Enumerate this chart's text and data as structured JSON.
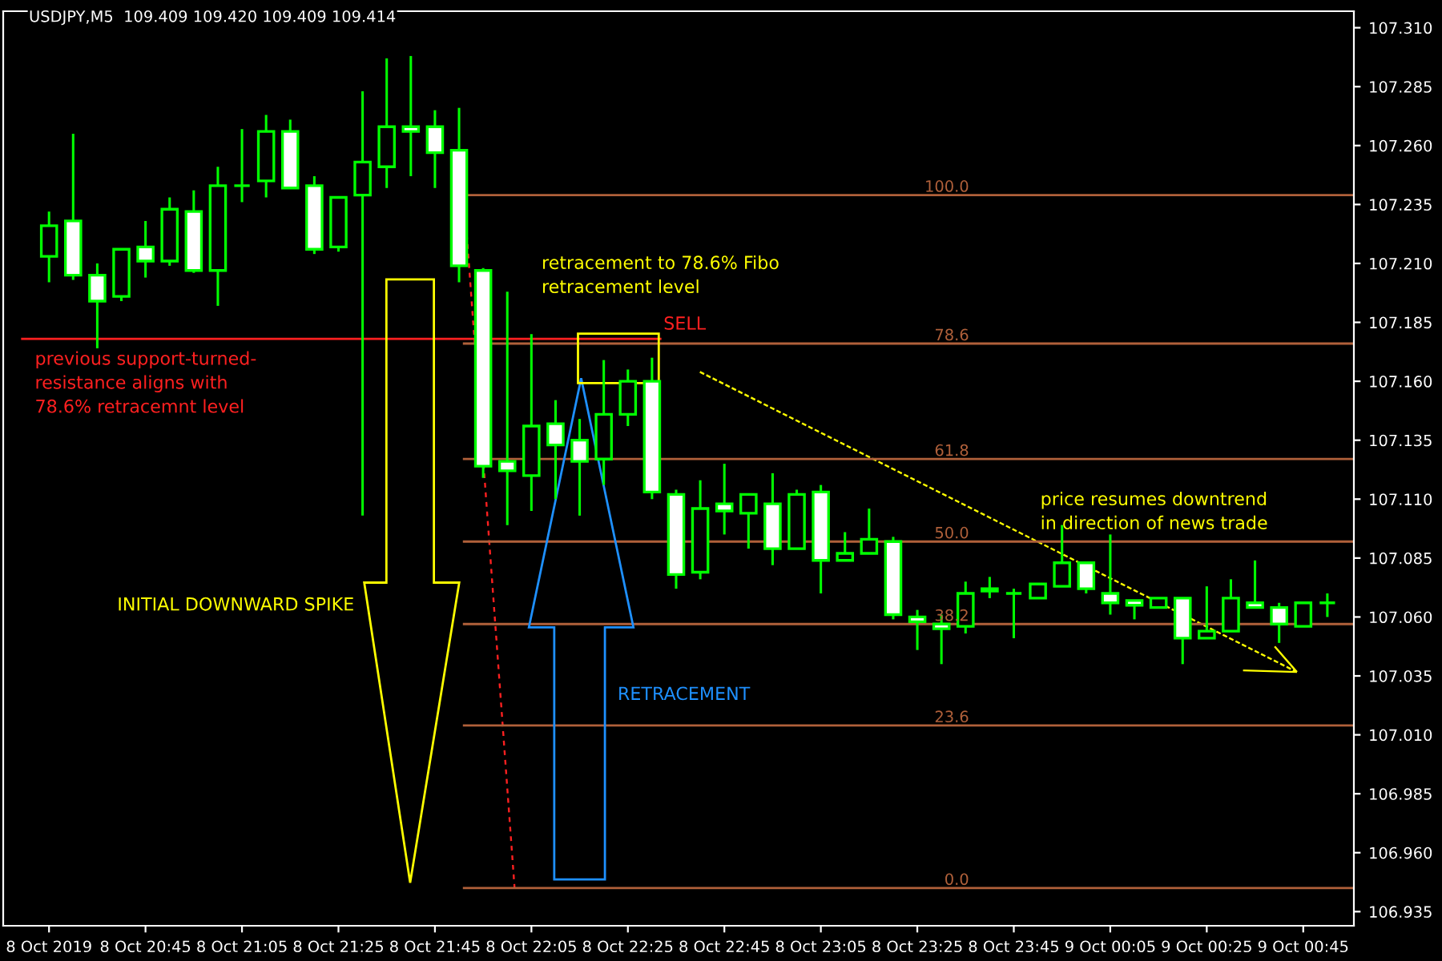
{
  "chart_data": {
    "type": "candlestick",
    "title": "USDJPY,M5  109.409 109.420 109.409 109.414",
    "categories": [
      "8 Oct 2019",
      null,
      null,
      null,
      "8 Oct 20:45",
      null,
      null,
      null,
      "8 Oct 21:05",
      null,
      null,
      null,
      "8 Oct 21:25",
      null,
      null,
      null,
      "8 Oct 21:45",
      null,
      null,
      null,
      "8 Oct 22:05",
      null,
      null,
      null,
      "8 Oct 22:25",
      null,
      null,
      null,
      "8 Oct 22:45",
      null,
      null,
      null,
      "8 Oct 23:05",
      null,
      null,
      null,
      "8 Oct 23:25",
      null,
      null,
      null,
      "8 Oct 23:45",
      null,
      null,
      null,
      "9 Oct 00:05",
      null,
      null,
      null,
      "9 Oct 00:25",
      null,
      null,
      null,
      "9 Oct 00:45",
      null
    ],
    "ohlc": [
      [
        107.213,
        107.232,
        107.202,
        107.226
      ],
      [
        107.228,
        107.265,
        107.203,
        107.205
      ],
      [
        107.205,
        107.21,
        107.174,
        107.194
      ],
      [
        107.196,
        107.216,
        107.194,
        107.216
      ],
      [
        107.217,
        107.228,
        107.204,
        107.211
      ],
      [
        107.211,
        107.238,
        107.209,
        107.233
      ],
      [
        107.232,
        107.241,
        107.206,
        107.207
      ],
      [
        107.207,
        107.251,
        107.192,
        107.243
      ],
      [
        107.243,
        107.267,
        107.236,
        107.243
      ],
      [
        107.245,
        107.273,
        107.238,
        107.266
      ],
      [
        107.266,
        107.271,
        107.242,
        107.242
      ],
      [
        107.243,
        107.247,
        107.214,
        107.216
      ],
      [
        107.217,
        107.238,
        107.215,
        107.238
      ],
      [
        107.239,
        107.283,
        107.103,
        107.253
      ],
      [
        107.251,
        107.297,
        107.242,
        107.268
      ],
      [
        107.268,
        107.298,
        107.247,
        107.266
      ],
      [
        107.268,
        107.275,
        107.242,
        107.257
      ],
      [
        107.258,
        107.276,
        107.202,
        107.209
      ],
      [
        107.207,
        107.208,
        107.119,
        107.124
      ],
      [
        107.126,
        107.198,
        107.099,
        107.122
      ],
      [
        107.12,
        107.18,
        107.105,
        107.141
      ],
      [
        107.142,
        107.152,
        107.11,
        107.133
      ],
      [
        107.135,
        107.144,
        107.103,
        107.126
      ],
      [
        107.127,
        107.169,
        107.116,
        107.146
      ],
      [
        107.146,
        107.165,
        107.141,
        107.16
      ],
      [
        107.16,
        107.17,
        107.11,
        107.113
      ],
      [
        107.112,
        107.114,
        107.072,
        107.078
      ],
      [
        107.079,
        107.118,
        107.076,
        107.106
      ],
      [
        107.108,
        107.125,
        107.095,
        107.105
      ],
      [
        107.104,
        107.112,
        107.089,
        107.112
      ],
      [
        107.108,
        107.121,
        107.082,
        107.089
      ],
      [
        107.089,
        107.114,
        107.089,
        107.112
      ],
      [
        107.113,
        107.116,
        107.07,
        107.084
      ],
      [
        107.084,
        107.096,
        107.084,
        107.087
      ],
      [
        107.087,
        107.106,
        107.087,
        107.093
      ],
      [
        107.092,
        107.094,
        107.059,
        107.061
      ],
      [
        107.06,
        107.063,
        107.046,
        107.058
      ],
      [
        107.057,
        107.061,
        107.04,
        107.055
      ],
      [
        107.056,
        107.075,
        107.053,
        107.07
      ],
      [
        107.072,
        107.077,
        107.068,
        107.071
      ],
      [
        107.07,
        107.072,
        107.051,
        107.07
      ],
      [
        107.068,
        107.074,
        107.068,
        107.074
      ],
      [
        107.073,
        107.099,
        107.073,
        107.083
      ],
      [
        107.083,
        107.083,
        107.07,
        107.072
      ],
      [
        107.07,
        107.095,
        107.061,
        107.066
      ],
      [
        107.067,
        107.067,
        107.059,
        107.065
      ],
      [
        107.064,
        107.068,
        107.064,
        107.068
      ],
      [
        107.068,
        107.068,
        107.04,
        107.051
      ],
      [
        107.051,
        107.073,
        107.051,
        107.054
      ],
      [
        107.054,
        107.076,
        107.054,
        107.068
      ],
      [
        107.066,
        107.084,
        107.064,
        107.064
      ],
      [
        107.064,
        107.066,
        107.049,
        107.057
      ],
      [
        107.056,
        107.066,
        107.056,
        107.066
      ],
      [
        107.066,
        107.07,
        107.06,
        107.066
      ]
    ],
    "color": "#00ff00",
    "ylim": [
      106.929,
      107.317
    ],
    "yticks": [
      {
        "value": 106.935,
        "label": "106.935"
      },
      {
        "value": 106.96,
        "label": "106.960"
      },
      {
        "value": 106.985,
        "label": "106.985"
      },
      {
        "value": 107.01,
        "label": "107.010"
      },
      {
        "value": 107.035,
        "label": "107.035"
      },
      {
        "value": 107.06,
        "label": "107.060"
      },
      {
        "value": 107.085,
        "label": "107.085"
      },
      {
        "value": 107.11,
        "label": "107.110"
      },
      {
        "value": 107.135,
        "label": "107.135"
      },
      {
        "value": 107.16,
        "label": "107.160"
      },
      {
        "value": 107.185,
        "label": "107.185"
      },
      {
        "value": 107.21,
        "label": "107.210"
      },
      {
        "value": 107.235,
        "label": "107.235"
      },
      {
        "value": 107.26,
        "label": "107.260"
      },
      {
        "value": 107.285,
        "label": "107.285"
      },
      {
        "value": 107.31,
        "label": "107.310"
      }
    ],
    "grid": false,
    "legend": false,
    "ref_lines": [
      {
        "axis": "y",
        "value": 107.239,
        "label": null,
        "color": "#b0603a"
      },
      {
        "axis": "y",
        "value": 107.176,
        "label": null,
        "color": "#b0603a"
      },
      {
        "axis": "y",
        "value": 107.127,
        "label": null,
        "color": "#b0603a"
      },
      {
        "axis": "y",
        "value": 107.092,
        "label": null,
        "color": "#b0603a"
      },
      {
        "axis": "y",
        "value": 107.057,
        "label": null,
        "color": "#b0603a"
      },
      {
        "axis": "y",
        "value": 107.014,
        "label": null,
        "color": "#b0603a"
      },
      {
        "axis": "y",
        "value": 106.945,
        "label": null,
        "color": "#b0603a"
      },
      {
        "axis": "y",
        "value": 107.178,
        "label": null,
        "color": "#ff2020"
      }
    ],
    "annotations": [
      {
        "text": "100.0",
        "y": 107.239
      },
      {
        "text": "78.6",
        "y": 107.176
      },
      {
        "text": "61.8",
        "y": 107.127
      },
      {
        "text": "50.0",
        "y": 107.092
      },
      {
        "text": "38.2",
        "y": 107.057
      },
      {
        "text": "23.6",
        "y": 107.014
      },
      {
        "text": "0.0",
        "y": 106.945
      },
      "previous support-turned-\nresistance aligns with\n78.6% retracemnt level",
      "retracement to 78.6% Fibo\nretracement level",
      "SELL",
      "INITIAL DOWNWARD SPIKE",
      "RETRACEMENT",
      "price resumes downtrend\nin direction of news trade"
    ]
  }
}
